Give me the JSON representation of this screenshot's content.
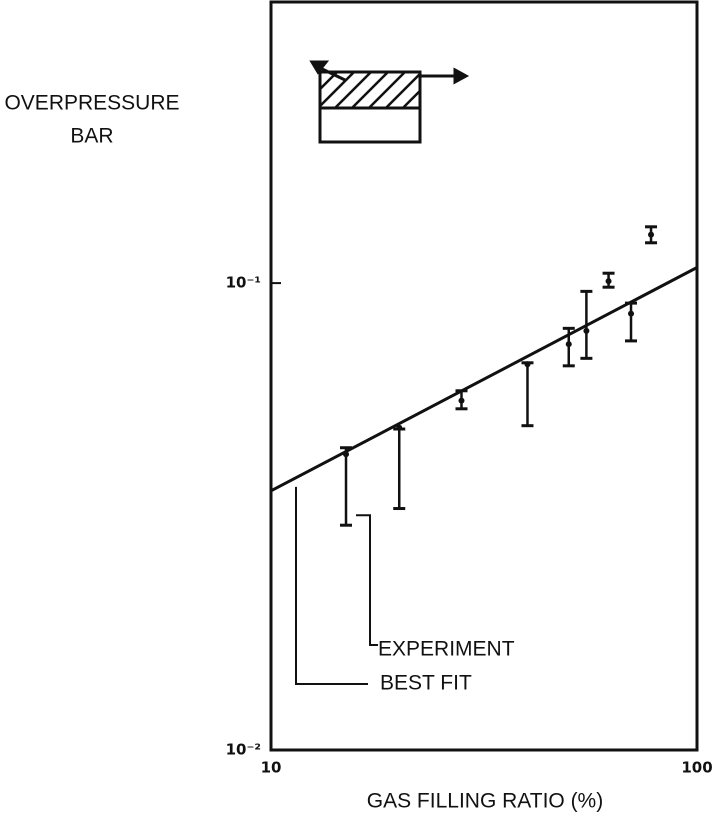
{
  "chart_data": {
    "type": "errorbar",
    "ylabel": [
      "OVERPRESSURE",
      "BAR"
    ],
    "xlabel": "GAS FILLING RATIO (%)",
    "log_x": true,
    "log_y": true,
    "xlim": [
      10,
      100
    ],
    "ylim": [
      0.01,
      0.4
    ],
    "xticks": [
      10,
      100
    ],
    "yticks": [
      {
        "value": 0.01,
        "label": "10⁻²"
      },
      {
        "value": 0.1,
        "label": "10⁻¹"
      }
    ],
    "series": [
      {
        "name": "EXPERIMENT",
        "color": "#111111",
        "x": [
          15,
          20,
          28,
          40,
          50,
          55,
          62,
          70,
          78
        ],
        "values": [
          0.043,
          0.049,
          0.056,
          0.067,
          0.074,
          0.079,
          0.101,
          0.086,
          0.127
        ],
        "low": [
          0.0303,
          0.0329,
          0.0538,
          0.0495,
          0.0665,
          0.069,
          0.098,
          0.0752,
          0.122
        ],
        "high": [
          0.0444,
          0.0487,
          0.0588,
          0.0675,
          0.08,
          0.096,
          0.105,
          0.0906,
          0.132
        ]
      },
      {
        "name": "BEST FIT",
        "color": "#111111",
        "x": [
          10,
          100
        ],
        "values": [
          0.0359,
          0.108
        ]
      }
    ]
  }
}
